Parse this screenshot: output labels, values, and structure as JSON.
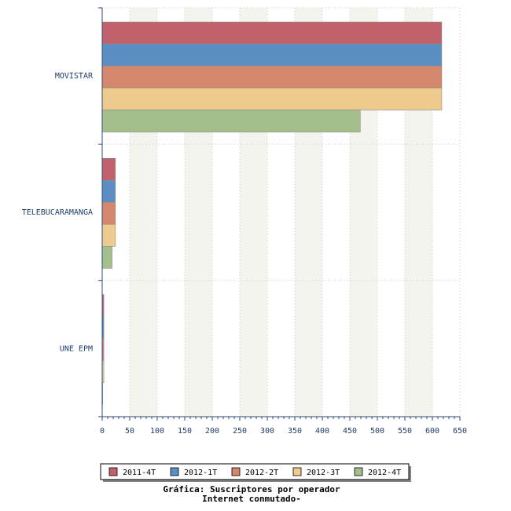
{
  "chart_data": {
    "type": "bar",
    "orientation": "horizontal",
    "title": [
      "Gráfica: Suscriptores por operador",
      "Internet conmutado-"
    ],
    "categories": [
      "MOVISTAR",
      "TELEBUCARAMANGA",
      "UNE EPM"
    ],
    "series": [
      {
        "name": "2011-4T",
        "color": "#c0616b",
        "values": [
          617,
          24,
          3
        ]
      },
      {
        "name": "2012-1T",
        "color": "#5b8fc4",
        "values": [
          617,
          24,
          3
        ]
      },
      {
        "name": "2012-2T",
        "color": "#d4876c",
        "values": [
          617,
          24,
          3
        ]
      },
      {
        "name": "2012-3T",
        "color": "#eecb8c",
        "values": [
          617,
          24,
          3
        ]
      },
      {
        "name": "2012-4T",
        "color": "#a4bf8c",
        "values": [
          469,
          18,
          0
        ]
      }
    ],
    "xlim": [
      0,
      650
    ],
    "xticks": [
      0,
      50,
      100,
      150,
      200,
      250,
      300,
      350,
      400,
      450,
      500,
      550,
      600,
      650
    ],
    "grid": true,
    "legend_position": "bottom"
  }
}
